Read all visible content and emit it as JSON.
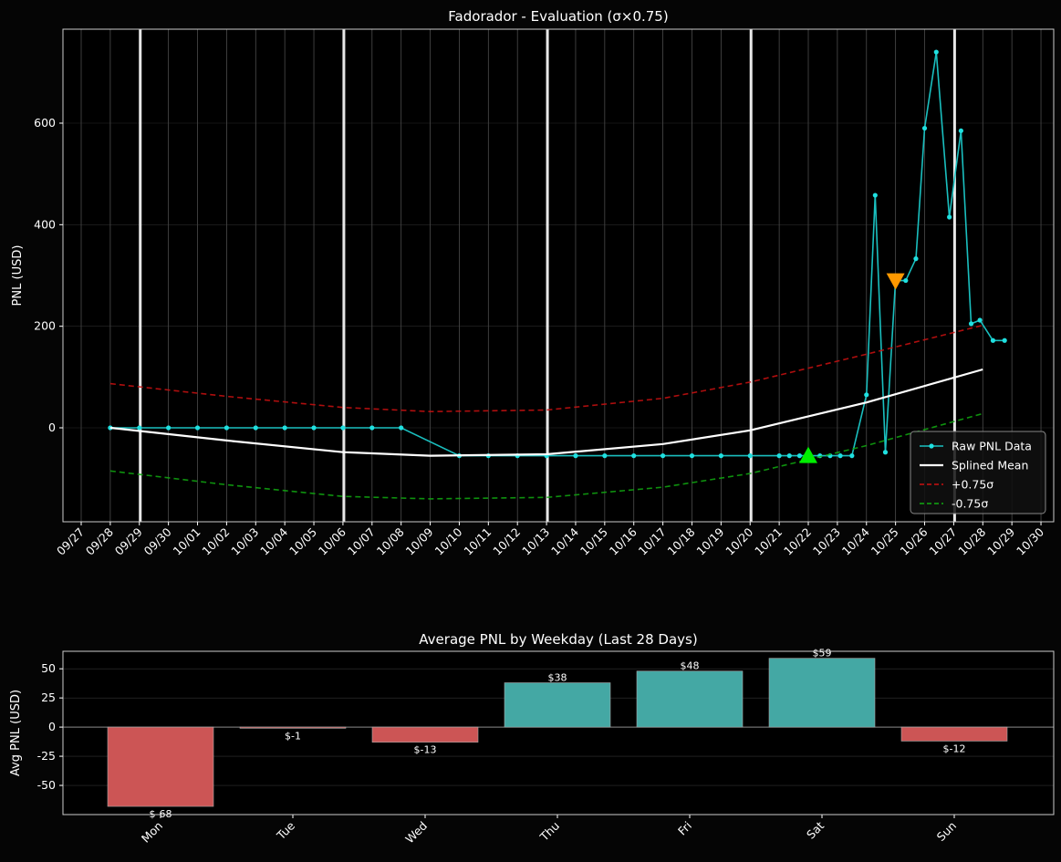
{
  "chart_data": [
    {
      "type": "line",
      "title": "Fadorador - Evaluation (σ×0.75)",
      "xlabel": "",
      "ylabel": "PNL (USD)",
      "ylim": [
        -185,
        785
      ],
      "xlim": [
        "09/27",
        "10/30"
      ],
      "y_ticks": [
        0,
        200,
        400,
        600
      ],
      "x_ticks": [
        "09/27",
        "09/28",
        "09/29",
        "09/30",
        "10/01",
        "10/02",
        "10/03",
        "10/04",
        "10/05",
        "10/06",
        "10/07",
        "10/08",
        "10/09",
        "10/10",
        "10/11",
        "10/12",
        "10/13",
        "10/14",
        "10/15",
        "10/16",
        "10/17",
        "10/18",
        "10/19",
        "10/20",
        "10/21",
        "10/22",
        "10/23",
        "10/24",
        "10/25",
        "10/26",
        "10/27",
        "10/28",
        "10/29",
        "10/30"
      ],
      "grid": true,
      "legend_position": "lower-right",
      "week_marker_dates": [
        "09/29",
        "10/06",
        "10/13",
        "10/20",
        "10/27"
      ],
      "series": [
        {
          "name": "Raw PNL Data",
          "color": "#1ABFBF",
          "style": "line-marker",
          "points": [
            [
              "09/28",
              0
            ],
            [
              "09/29",
              0
            ],
            [
              "09/30",
              0
            ],
            [
              "10/01",
              0
            ],
            [
              "10/02",
              0
            ],
            [
              "10/03",
              0
            ],
            [
              "10/04",
              0
            ],
            [
              "10/05",
              0
            ],
            [
              "10/06",
              0
            ],
            [
              "10/07",
              0
            ],
            [
              "10/08",
              0
            ],
            [
              "10/10",
              -55
            ],
            [
              "10/11",
              -55
            ],
            [
              "10/12",
              -55
            ],
            [
              "10/13",
              -55
            ],
            [
              "10/14",
              -55
            ],
            [
              "10/15",
              -55
            ],
            [
              "10/16",
              -55
            ],
            [
              "10/17",
              -55
            ],
            [
              "10/18",
              -55
            ],
            [
              "10/19",
              -55
            ],
            [
              "10/20",
              -55
            ],
            [
              "10/21",
              -55
            ],
            [
              "10/21.35",
              -55
            ],
            [
              "10/21.7",
              -55
            ],
            [
              "10/22",
              -55
            ],
            [
              "10/22.4",
              -55
            ],
            [
              "10/22.75",
              -55
            ],
            [
              "10/23.1",
              -55
            ],
            [
              "10/23.5",
              -55
            ],
            [
              "10/24",
              65
            ],
            [
              "10/24.3",
              458
            ],
            [
              "10/24.65",
              -48
            ],
            [
              "10/25",
              290
            ],
            [
              "10/25.35",
              290
            ],
            [
              "10/25.7",
              333
            ],
            [
              "10/26",
              590
            ],
            [
              "10/26.4",
              740
            ],
            [
              "10/26.85",
              415
            ],
            [
              "10/27.25",
              585
            ],
            [
              "10/27.6",
              205
            ],
            [
              "10/27.9",
              212
            ],
            [
              "10/28.35",
              172
            ],
            [
              "10/28.75",
              172
            ]
          ]
        },
        {
          "name": "Splined Mean",
          "color": "#ffffff",
          "style": "solid",
          "points": [
            [
              "09/28",
              0
            ],
            [
              "10/02",
              -25
            ],
            [
              "10/06",
              -48
            ],
            [
              "10/09",
              -55
            ],
            [
              "10/13",
              -52
            ],
            [
              "10/17",
              -32
            ],
            [
              "10/20",
              -5
            ],
            [
              "10/24",
              50
            ],
            [
              "10/28",
              115
            ]
          ]
        },
        {
          "name": "+0.75σ",
          "color": "#CC1111",
          "style": "dashed",
          "points": [
            [
              "09/28",
              87
            ],
            [
              "10/02",
              62
            ],
            [
              "10/06",
              40
            ],
            [
              "10/09",
              32
            ],
            [
              "10/13",
              35
            ],
            [
              "10/17",
              58
            ],
            [
              "10/20",
              90
            ],
            [
              "10/24",
              145
            ],
            [
              "10/28",
              202
            ]
          ]
        },
        {
          "name": "-0.75σ",
          "color": "#11AA11",
          "style": "dashed",
          "points": [
            [
              "09/28",
              -85
            ],
            [
              "10/02",
              -112
            ],
            [
              "10/06",
              -135
            ],
            [
              "10/09",
              -140
            ],
            [
              "10/13",
              -137
            ],
            [
              "10/17",
              -117
            ],
            [
              "10/20",
              -90
            ],
            [
              "10/24",
              -35
            ],
            [
              "10/28",
              28
            ]
          ]
        }
      ],
      "markers": [
        {
          "name": "buy-marker",
          "shape": "triangle-up",
          "color": "#00EE00",
          "x": "10/22",
          "y": -55
        },
        {
          "name": "sell-marker",
          "shape": "triangle-down",
          "color": "#FF9900",
          "x": "10/25",
          "y": 290
        }
      ]
    },
    {
      "type": "bar",
      "title": "Average PNL by Weekday (Last 28 Days)",
      "xlabel": "",
      "ylabel": "Avg PNL (USD)",
      "ylim": [
        -75,
        65
      ],
      "y_ticks": [
        -50,
        -25,
        0,
        25,
        50
      ],
      "grid": true,
      "categories": [
        "Mon",
        "Tue",
        "Wed",
        "Thu",
        "Fri",
        "Sat",
        "Sun"
      ],
      "values": [
        -68,
        -1,
        -13,
        38,
        48,
        59,
        -12
      ],
      "value_labels": [
        "$-68",
        "$-1",
        "$-13",
        "$38",
        "$48",
        "$59",
        "$-12"
      ],
      "positive_color": "#44A8A4",
      "negative_color": "#CC5555"
    }
  ]
}
